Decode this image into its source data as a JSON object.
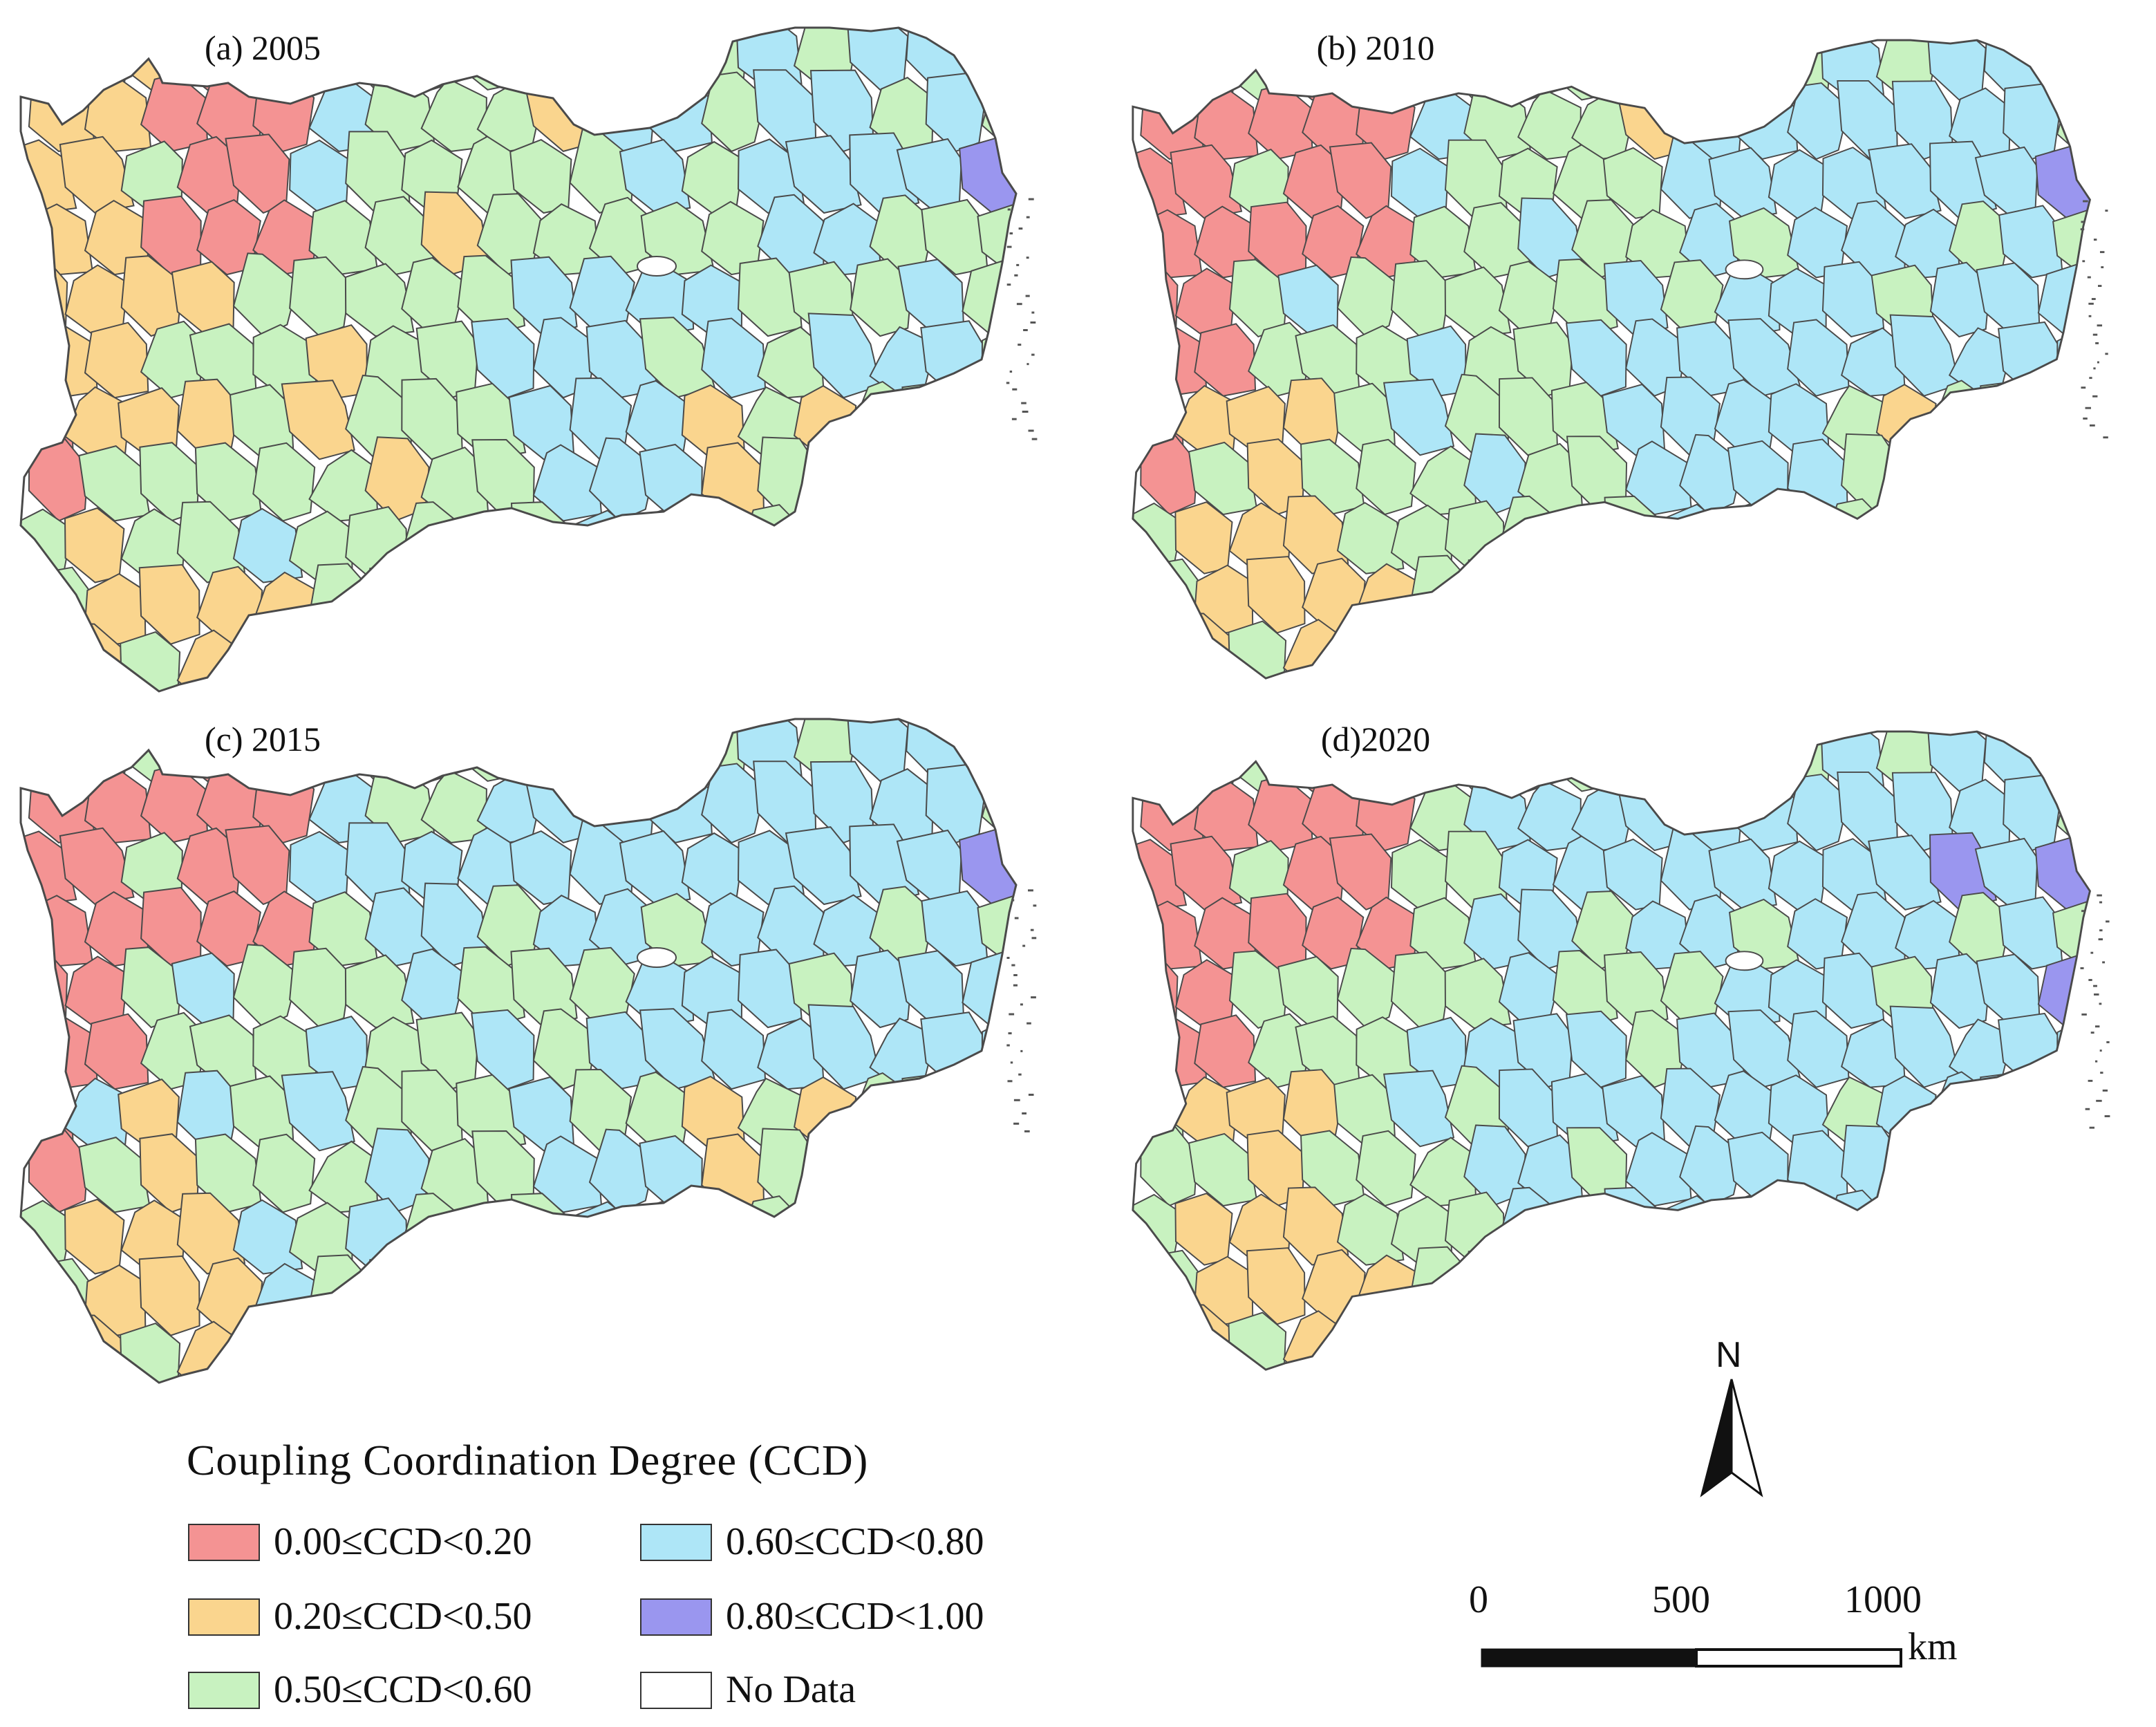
{
  "panels": [
    {
      "id": "a",
      "title": "(a) 2005"
    },
    {
      "id": "b",
      "title": "(b) 2010"
    },
    {
      "id": "c",
      "title": "(c) 2015"
    },
    {
      "id": "d",
      "title": "(d)2020"
    }
  ],
  "legend": {
    "title": "Coupling Coordination Degree (CCD)",
    "items": [
      {
        "label": "0.00≤CCD<0.20",
        "color": "#f49393"
      },
      {
        "label": "0.20≤CCD<0.50",
        "color": "#fad58e"
      },
      {
        "label": "0.50≤CCD<0.60",
        "color": "#c8f2c0"
      },
      {
        "label": "0.60≤CCD<0.80",
        "color": "#aee6f7"
      },
      {
        "label": "0.80≤CCD<1.00",
        "color": "#9a96ef"
      },
      {
        "label": "No Data",
        "color": "#ffffff"
      }
    ]
  },
  "north_arrow": {
    "label": "N"
  },
  "scale_bar": {
    "ticks": [
      "0",
      "500",
      "1000"
    ],
    "unit": "km"
  },
  "colors": {
    "border": "#4a4a4a"
  }
}
